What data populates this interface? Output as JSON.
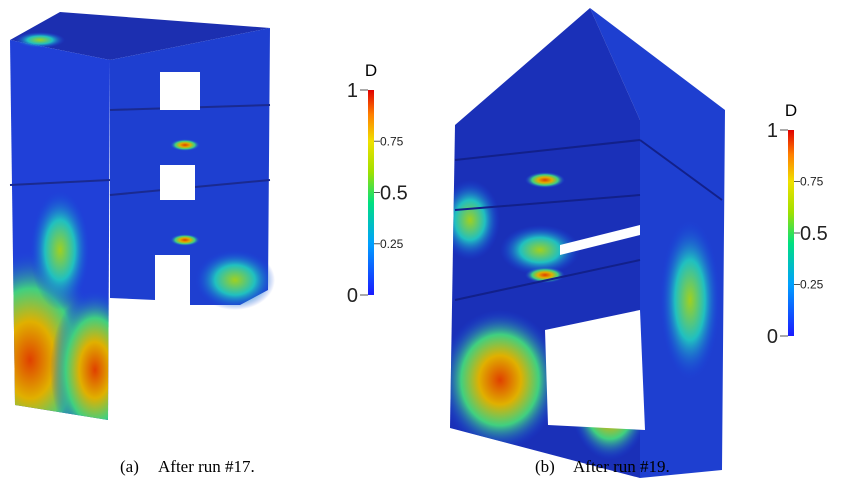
{
  "panels": [
    {
      "label": "(a)",
      "caption": "After run #17.",
      "colorbar": {
        "title": "D",
        "ticks": [
          1,
          0.75,
          0.5,
          0.25,
          0
        ]
      }
    },
    {
      "label": "(b)",
      "caption": "After run #19.",
      "colorbar": {
        "title": "D",
        "ticks": [
          1,
          0.75,
          0.5,
          0.25,
          0
        ]
      }
    }
  ]
}
